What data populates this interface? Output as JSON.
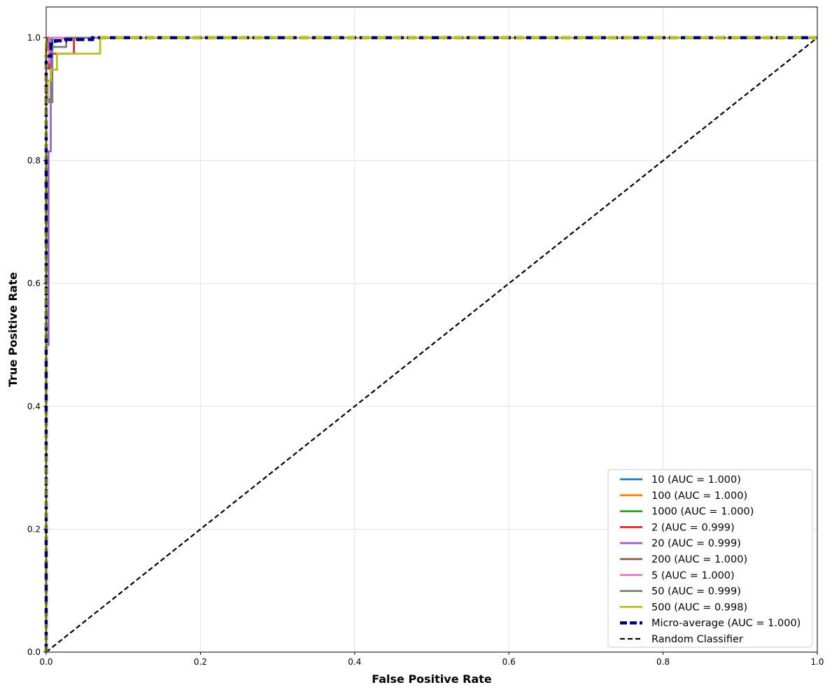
{
  "chart_data": {
    "type": "line",
    "title": "",
    "xlabel": "False Positive Rate",
    "ylabel": "True Positive Rate",
    "xlim": [
      0,
      1
    ],
    "ylim": [
      0,
      1.05
    ],
    "xticks": [
      "0.0",
      "0.2",
      "0.4",
      "0.6",
      "0.8",
      "1.0"
    ],
    "yticks": [
      "0.0",
      "0.2",
      "0.4",
      "0.6",
      "0.8",
      "1.0"
    ],
    "grid": true,
    "legend_position": "lower-right",
    "series": [
      {
        "name": "10 (AUC = 1.000)",
        "color": "#1f77b4",
        "dash": "solid",
        "x": [
          0,
          0,
          0.004,
          0.004,
          0.008,
          0.008,
          1
        ],
        "y": [
          0,
          0.95,
          0.95,
          0.98,
          0.98,
          1,
          1
        ]
      },
      {
        "name": "100 (AUC = 1.000)",
        "color": "#ff7f0e",
        "dash": "solid",
        "x": [
          0,
          0,
          0.003,
          0.003,
          1
        ],
        "y": [
          0,
          0.98,
          0.98,
          1,
          1
        ]
      },
      {
        "name": "1000 (AUC = 1.000)",
        "color": "#2ca02c",
        "dash": "solid",
        "x": [
          0,
          0,
          0.002,
          0.002,
          1
        ],
        "y": [
          0,
          0.99,
          0.99,
          1,
          1
        ]
      },
      {
        "name": "2 (AUC = 0.999)",
        "color": "#d62728",
        "dash": "solid",
        "x": [
          0,
          0,
          0.004,
          0.004,
          0.036,
          0.036,
          1
        ],
        "y": [
          0,
          0.95,
          0.95,
          0.974,
          0.974,
          1,
          1
        ]
      },
      {
        "name": "20 (AUC = 0.999)",
        "color": "#9467bd",
        "dash": "solid",
        "x": [
          0,
          0,
          0.003,
          0.003,
          0.006,
          0.006,
          1
        ],
        "y": [
          0,
          0.5,
          0.5,
          0.815,
          0.815,
          1,
          1
        ]
      },
      {
        "name": "200 (AUC = 1.000)",
        "color": "#8c564b",
        "dash": "solid",
        "x": [
          0,
          0,
          0.002,
          0.002,
          1
        ],
        "y": [
          0,
          0.985,
          0.985,
          1,
          1
        ]
      },
      {
        "name": "5 (AUC = 1.000)",
        "color": "#e377c2",
        "dash": "solid",
        "x": [
          0,
          0,
          0.004,
          0.004,
          1
        ],
        "y": [
          0,
          0.96,
          0.96,
          1,
          1
        ]
      },
      {
        "name": "50 (AUC = 0.999)",
        "color": "#7f7f7f",
        "dash": "solid",
        "x": [
          0,
          0,
          0.004,
          0.004,
          0.008,
          0.008,
          0.026,
          0.026,
          0.06,
          0.06,
          1
        ],
        "y": [
          0,
          0.9,
          0.9,
          0.895,
          0.895,
          0.985,
          0.985,
          1,
          1,
          1,
          1
        ]
      },
      {
        "name": "500 (AUC = 0.998)",
        "color": "#bcbd22",
        "dash": "solid",
        "x": [
          0,
          0,
          0.002,
          0.002,
          0.006,
          0.006,
          0.014,
          0.014,
          0.07,
          0.07,
          1
        ],
        "y": [
          0,
          0.9,
          0.9,
          0.93,
          0.93,
          0.948,
          0.948,
          0.974,
          0.974,
          1,
          1
        ]
      },
      {
        "name": "Micro-average (AUC = 1.000)",
        "color": "#000080",
        "dash": "dashed-thick",
        "x": [
          0,
          0,
          0.006,
          0.006,
          0.012,
          0.012,
          0.025,
          0.025,
          0.06,
          0.06,
          1
        ],
        "y": [
          0,
          0.97,
          0.97,
          0.99,
          0.99,
          0.995,
          0.995,
          0.997,
          0.997,
          1,
          1
        ]
      },
      {
        "name": "Random Classifier",
        "color": "#000000",
        "dash": "dashed",
        "x": [
          0,
          1
        ],
        "y": [
          0,
          1
        ]
      }
    ]
  }
}
